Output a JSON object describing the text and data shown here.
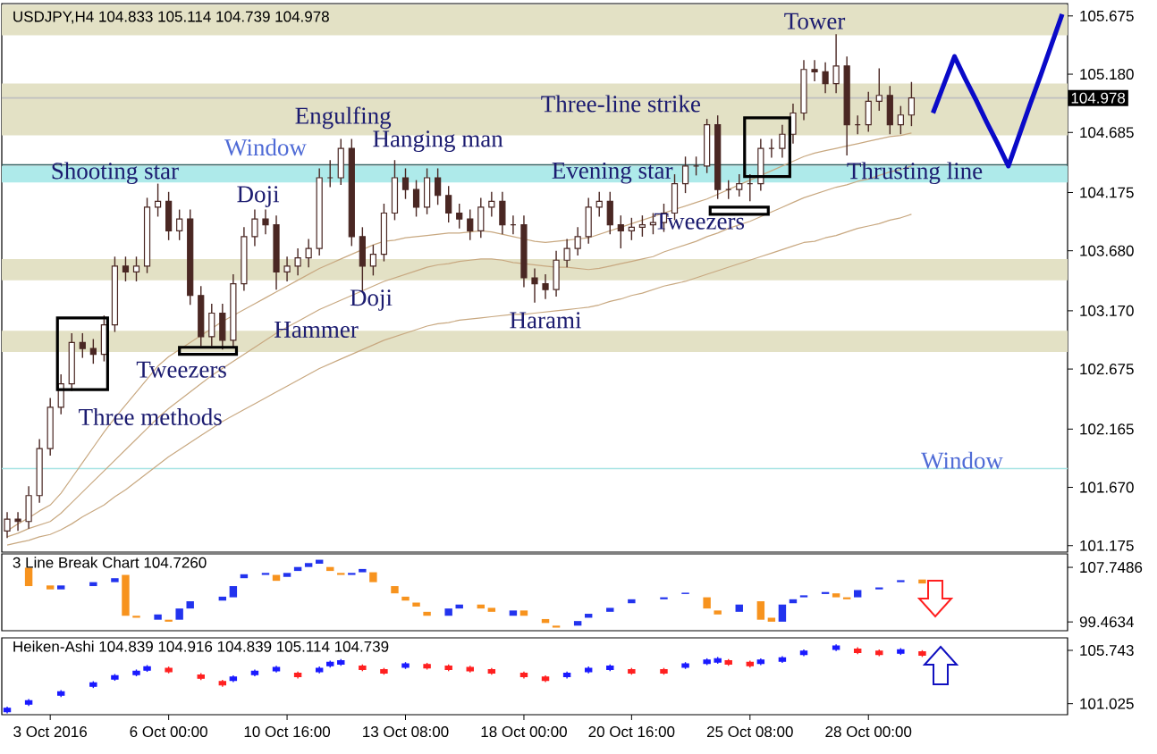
{
  "chart_data": [
    {
      "type": "candlestick",
      "title": "USDJPY,H4 104.833 105.114 104.739 104.978",
      "color": "#4a2723",
      "categories": [
        null,
        null,
        null,
        null,
        null,
        null,
        null,
        null,
        null,
        null,
        null,
        null,
        null,
        null,
        null,
        null,
        null,
        null,
        null,
        null,
        null,
        null,
        null,
        null,
        null,
        null,
        null,
        null,
        null,
        null,
        null,
        null,
        null,
        null,
        null,
        null,
        null,
        null,
        null,
        null,
        null,
        null,
        null,
        null,
        null,
        null,
        null,
        null,
        null,
        null,
        null,
        null,
        null,
        null,
        null,
        null,
        null,
        null,
        null,
        null,
        null,
        null,
        null,
        null,
        null,
        null,
        null,
        null,
        null,
        null,
        null,
        null,
        null,
        null,
        null,
        null,
        null,
        null,
        null,
        null,
        null,
        null,
        null,
        null,
        null,
        null,
        null,
        null,
        null,
        null,
        null,
        null,
        null,
        null,
        null,
        null,
        null,
        null,
        null
      ],
      "ohlc": [
        [
          101.3,
          101.46,
          101.24,
          101.4
        ],
        [
          101.4,
          101.46,
          101.3,
          101.38
        ],
        [
          101.38,
          101.68,
          101.32,
          101.6
        ],
        [
          101.6,
          102.08,
          101.54,
          102.0
        ],
        [
          102.0,
          102.43,
          101.94,
          102.35
        ],
        [
          102.35,
          102.63,
          102.29,
          102.55
        ],
        [
          102.55,
          102.98,
          102.49,
          102.9
        ],
        [
          102.9,
          102.98,
          102.77,
          102.85
        ],
        [
          102.85,
          102.93,
          102.72,
          102.8
        ],
        [
          102.8,
          103.13,
          102.74,
          103.05
        ],
        [
          103.05,
          103.63,
          102.99,
          103.55
        ],
        [
          103.55,
          103.63,
          103.42,
          103.5
        ],
        [
          103.5,
          103.63,
          103.42,
          103.55
        ],
        [
          103.55,
          104.13,
          103.49,
          104.05
        ],
        [
          104.05,
          104.25,
          103.97,
          104.1
        ],
        [
          104.1,
          104.18,
          103.77,
          103.85
        ],
        [
          103.85,
          104.03,
          103.77,
          103.95
        ],
        [
          103.95,
          104.03,
          103.22,
          103.3
        ],
        [
          103.3,
          103.38,
          102.87,
          102.95
        ],
        [
          102.95,
          103.23,
          102.87,
          103.15
        ],
        [
          103.15,
          103.23,
          102.84,
          102.92
        ],
        [
          102.92,
          103.48,
          102.86,
          103.4
        ],
        [
          103.4,
          103.88,
          103.34,
          103.8
        ],
        [
          103.8,
          104.03,
          103.72,
          103.95
        ],
        [
          103.95,
          104.03,
          103.82,
          103.9
        ],
        [
          103.9,
          103.98,
          103.35,
          103.5
        ],
        [
          103.5,
          103.63,
          103.42,
          103.55
        ],
        [
          103.55,
          103.7,
          103.47,
          103.62
        ],
        [
          103.62,
          103.78,
          103.54,
          103.7
        ],
        [
          103.7,
          104.38,
          103.64,
          104.3
        ],
        [
          104.3,
          104.45,
          104.22,
          104.3
        ],
        [
          104.3,
          104.63,
          104.24,
          104.55
        ],
        [
          104.55,
          104.63,
          103.72,
          103.8
        ],
        [
          103.8,
          103.88,
          103.33,
          103.55
        ],
        [
          103.55,
          103.73,
          103.47,
          103.65
        ],
        [
          103.65,
          104.08,
          103.59,
          104.0
        ],
        [
          104.0,
          104.45,
          103.94,
          104.3
        ],
        [
          104.3,
          104.38,
          104.12,
          104.2
        ],
        [
          104.2,
          104.28,
          103.97,
          104.05
        ],
        [
          104.05,
          104.38,
          103.99,
          104.3
        ],
        [
          104.3,
          104.38,
          104.07,
          104.15
        ],
        [
          104.15,
          104.23,
          103.92,
          104.0
        ],
        [
          104.0,
          104.08,
          103.87,
          103.95
        ],
        [
          103.95,
          104.03,
          103.77,
          103.85
        ],
        [
          103.85,
          104.13,
          103.79,
          104.05
        ],
        [
          104.05,
          104.18,
          103.97,
          104.1
        ],
        [
          104.1,
          104.18,
          103.82,
          103.9
        ],
        [
          103.9,
          103.98,
          103.82,
          103.9
        ],
        [
          103.9,
          103.98,
          103.37,
          103.45
        ],
        [
          103.45,
          103.53,
          103.24,
          103.4
        ],
        [
          103.4,
          103.48,
          103.27,
          103.35
        ],
        [
          103.35,
          103.68,
          103.29,
          103.6
        ],
        [
          103.6,
          103.78,
          103.54,
          103.7
        ],
        [
          103.7,
          103.88,
          103.64,
          103.8
        ],
        [
          103.8,
          104.13,
          103.74,
          104.05
        ],
        [
          104.05,
          104.18,
          103.97,
          104.1
        ],
        [
          104.1,
          104.18,
          103.82,
          103.9
        ],
        [
          103.9,
          103.98,
          103.7,
          103.85
        ],
        [
          103.85,
          103.96,
          103.77,
          103.88
        ],
        [
          103.88,
          103.98,
          103.8,
          103.9
        ],
        [
          103.9,
          104.0,
          103.82,
          103.92
        ],
        [
          103.92,
          104.08,
          103.84,
          104.0
        ],
        [
          104.0,
          104.33,
          103.94,
          104.25
        ],
        [
          104.25,
          104.48,
          104.17,
          104.4
        ],
        [
          104.4,
          104.48,
          104.32,
          104.4
        ],
        [
          104.4,
          104.8,
          104.34,
          104.75
        ],
        [
          104.75,
          104.83,
          104.12,
          104.2
        ],
        [
          104.2,
          104.28,
          104.12,
          104.2
        ],
        [
          104.2,
          104.33,
          104.14,
          104.25
        ],
        [
          104.25,
          104.33,
          104.1,
          104.25
        ],
        [
          104.25,
          104.63,
          104.19,
          104.55
        ],
        [
          104.55,
          104.63,
          104.47,
          104.55
        ],
        [
          104.55,
          104.75,
          104.47,
          104.67
        ],
        [
          104.67,
          104.93,
          104.59,
          104.85
        ],
        [
          104.85,
          105.3,
          104.79,
          105.22
        ],
        [
          105.22,
          105.3,
          105.12,
          105.2
        ],
        [
          105.2,
          105.28,
          105.02,
          105.1
        ],
        [
          105.1,
          105.52,
          105.02,
          105.25
        ],
        [
          105.25,
          105.33,
          104.49,
          104.75
        ],
        [
          104.75,
          104.83,
          104.67,
          104.75
        ],
        [
          104.75,
          105.03,
          104.69,
          104.95
        ],
        [
          104.95,
          105.23,
          104.87,
          105.0
        ],
        [
          105.0,
          105.08,
          104.67,
          104.75
        ],
        [
          104.75,
          104.91,
          104.67,
          104.833
        ],
        [
          104.833,
          105.114,
          104.739,
          104.978
        ],
        null,
        null,
        null,
        null,
        null,
        null,
        null,
        null,
        null,
        null,
        null,
        null,
        null,
        null
      ],
      "series": [
        {
          "type": "line",
          "color": "#c8a880",
          "values": [
            101.3,
            101.36,
            101.41,
            101.47,
            101.52,
            101.62,
            101.75,
            101.88,
            102.01,
            102.14,
            102.26,
            102.37,
            102.48,
            102.59,
            102.7,
            102.78,
            102.84,
            102.9,
            102.96,
            103.02,
            103.08,
            103.13,
            103.18,
            103.23,
            103.28,
            103.33,
            103.38,
            103.43,
            103.48,
            103.53,
            103.57,
            103.61,
            103.65,
            103.69,
            103.73,
            103.76,
            103.77,
            103.79,
            103.8,
            103.81,
            103.82,
            103.83,
            103.83,
            103.84,
            103.85,
            103.84,
            103.82,
            103.8,
            103.78,
            103.76,
            103.75,
            103.76,
            103.77,
            103.78,
            103.79,
            103.82,
            103.85,
            103.88,
            103.91,
            103.94,
            103.97,
            104.0,
            104.03,
            104.06,
            104.09,
            104.12,
            104.16,
            104.2,
            104.24,
            104.28,
            104.32,
            104.36,
            104.4,
            104.44,
            104.48,
            104.51,
            104.53,
            104.55,
            104.57,
            104.59,
            104.61,
            104.63,
            104.65,
            104.66,
            104.68,
            null,
            null,
            null,
            null,
            null,
            null,
            null,
            null,
            null,
            null,
            null,
            null,
            null,
            null
          ]
        },
        {
          "type": "line",
          "color": "#c8a880",
          "values": [
            101.25,
            101.28,
            101.32,
            101.35,
            101.38,
            101.45,
            101.54,
            101.63,
            101.72,
            101.81,
            101.9,
            101.99,
            102.08,
            102.17,
            102.26,
            102.34,
            102.41,
            102.48,
            102.55,
            102.62,
            102.68,
            102.74,
            102.8,
            102.86,
            102.92,
            102.98,
            103.03,
            103.08,
            103.13,
            103.18,
            103.22,
            103.26,
            103.3,
            103.34,
            103.38,
            103.42,
            103.45,
            103.48,
            103.51,
            103.54,
            103.56,
            103.57,
            103.59,
            103.6,
            103.61,
            103.61,
            103.6,
            103.58,
            103.57,
            103.56,
            103.55,
            103.54,
            103.54,
            103.53,
            103.52,
            103.53,
            103.55,
            103.57,
            103.59,
            103.61,
            103.63,
            103.67,
            103.7,
            103.73,
            103.76,
            103.8,
            103.83,
            103.87,
            103.9,
            103.93,
            103.97,
            104.01,
            104.05,
            104.09,
            104.13,
            104.16,
            104.19,
            104.22,
            104.24,
            104.27,
            104.29,
            104.32,
            104.35,
            104.37,
            104.4,
            null,
            null,
            null,
            null,
            null,
            null,
            null,
            null,
            null,
            null,
            null,
            null,
            null,
            null
          ]
        },
        {
          "type": "line",
          "color": "#c8a880",
          "values": [
            101.18,
            101.2,
            101.22,
            101.25,
            101.27,
            101.31,
            101.36,
            101.42,
            101.47,
            101.52,
            101.59,
            101.65,
            101.72,
            101.79,
            101.86,
            101.93,
            101.99,
            102.05,
            102.11,
            102.17,
            102.23,
            102.28,
            102.33,
            102.38,
            102.43,
            102.48,
            102.53,
            102.58,
            102.63,
            102.68,
            102.72,
            102.76,
            102.8,
            102.84,
            102.88,
            102.92,
            102.95,
            102.98,
            103.01,
            103.04,
            103.06,
            103.07,
            103.09,
            103.1,
            103.11,
            103.12,
            103.13,
            103.14,
            103.14,
            103.15,
            103.16,
            103.17,
            103.18,
            103.19,
            103.2,
            103.22,
            103.25,
            103.27,
            103.3,
            103.32,
            103.35,
            103.38,
            103.4,
            103.42,
            103.45,
            103.48,
            103.51,
            103.54,
            103.57,
            103.6,
            103.63,
            103.66,
            103.69,
            103.72,
            103.75,
            103.76,
            103.79,
            103.81,
            103.84,
            103.87,
            103.89,
            103.91,
            103.94,
            103.96,
            103.99,
            null,
            null,
            null,
            null,
            null,
            null,
            null,
            null,
            null,
            null,
            null,
            null,
            null,
            null
          ]
        },
        {
          "type": "line",
          "color": "#0a0ac8",
          "values": [
            null,
            null,
            null,
            null,
            null,
            null,
            null,
            null,
            null,
            null,
            null,
            null,
            null,
            null,
            null,
            null,
            null,
            null,
            null,
            null,
            null,
            null,
            null,
            null,
            null,
            null,
            null,
            null,
            null,
            null,
            null,
            null,
            null,
            null,
            null,
            null,
            null,
            null,
            null,
            null,
            null,
            null,
            null,
            null,
            null,
            null,
            null,
            null,
            null,
            null,
            null,
            null,
            null,
            null,
            null,
            null,
            null,
            null,
            null,
            null,
            null,
            null,
            null,
            null,
            null,
            null,
            null,
            null,
            null,
            null,
            null,
            null,
            null,
            null,
            null,
            null,
            null,
            null,
            null,
            null,
            null,
            null,
            null,
            null,
            null,
            null,
            104.85,
            105.09,
            105.33,
            105.14,
            104.96,
            104.77,
            104.59,
            104.4,
            104.66,
            104.92,
            105.17,
            105.43,
            105.69
          ]
        }
      ],
      "bands": [
        {
          "axis": "y",
          "from": 105.51,
          "to": 105.77,
          "color": "#e3e1c5"
        },
        {
          "axis": "y",
          "from": 104.66,
          "to": 105.1,
          "color": "#e3e1c5"
        },
        {
          "axis": "y",
          "from": 104.26,
          "to": 104.4,
          "color": "#aeeaea"
        },
        {
          "axis": "y",
          "from": 103.43,
          "to": 103.61,
          "color": "#e3e1c5"
        },
        {
          "axis": "y",
          "from": 102.82,
          "to": 103.0,
          "color": "#e3e1c5"
        }
      ],
      "ref_lines": [
        {
          "axis": "y",
          "value": 104.978,
          "label": "104.978",
          "color": "#c0c0c0"
        },
        {
          "axis": "y",
          "value": 104.41,
          "color": "#2f5f5f"
        },
        {
          "axis": "y",
          "value": 101.83,
          "color": "#a8e4e4"
        }
      ],
      "annotations": [
        "Tower",
        "Three-line strike",
        "Engulfing",
        "Hanging man",
        "Shooting star",
        "Window",
        "Evening star",
        "Thrusting line",
        "Doji",
        "Tweezers",
        "Hammer",
        "Doji",
        "Harami",
        "Tweezers",
        "Three methods",
        "Window"
      ],
      "ylim": [
        101.12,
        105.78
      ],
      "yticks": [
        101.175,
        {
          "value": 101.67,
          "label": "101.670"
        },
        102.165,
        102.675,
        {
          "value": 103.17,
          "label": "103.170"
        },
        {
          "value": 103.68,
          "label": "103.680"
        },
        104.175,
        104.685,
        {
          "value": 105.18,
          "label": "105.180"
        },
        105.675
      ],
      "tick_labels": "y"
    },
    {
      "type": "bar",
      "title": "3 Line Break Chart 104.7260",
      "categories": [
        null,
        null,
        null,
        null,
        null,
        null,
        null,
        null,
        null,
        null,
        null,
        null,
        null,
        null,
        null,
        null,
        null,
        null,
        null,
        null,
        null,
        null,
        null,
        null,
        null,
        null,
        null,
        null,
        null,
        null,
        null,
        null,
        null,
        null,
        null,
        null,
        null,
        null,
        null,
        null,
        null,
        null,
        null,
        null,
        null,
        null,
        null,
        null,
        null,
        null,
        null,
        null,
        null,
        null,
        null,
        null,
        null,
        null,
        null,
        null,
        null,
        null,
        null,
        null,
        null,
        null,
        null,
        null,
        null,
        null,
        null,
        null,
        null,
        null,
        null,
        null,
        null,
        null,
        null,
        null,
        null,
        null,
        null,
        null,
        null,
        null,
        null,
        null,
        null,
        null,
        null,
        null,
        null,
        null,
        null,
        null,
        null,
        null,
        null
      ],
      "base": [
        null,
        null,
        104.9,
        null,
        104.4,
        104.4,
        null,
        null,
        104.9,
        null,
        105.5,
        100.4,
        100.1,
        null,
        99.8,
        99.5,
        99.8,
        101.5,
        null,
        null,
        102.7,
        103.2,
        106.1,
        null,
        106.6,
        105.7,
        106.3,
        107.2,
        107.8,
        108.3,
        107.2,
        106.6,
        106.6,
        107.0,
        105.5,
        null,
        103.8,
        102.7,
        101.8,
        100.4,
        null,
        100.4,
        101.5,
        null,
        101.5,
        101.0,
        null,
        100.4,
        100.4,
        null,
        99.3,
        98.6,
        null,
        98.9,
        100.1,
        null,
        101.0,
        null,
        102.3,
        null,
        null,
        102.9,
        null,
        103.7,
        null,
        101.5,
        100.6,
        null,
        101.0,
        null,
        99.8,
        99.5,
        99.5,
        102.3,
        103.2,
        null,
        103.7,
        103.2,
        102.9,
        103.2,
        null,
        104.4,
        null,
        105.5,
        null,
        105.3,
        null,
        null,
        null,
        null,
        null,
        null,
        null,
        null,
        null,
        null,
        null,
        null,
        null
      ],
      "values": [
        null,
        null,
        2.8,
        null,
        0.6,
        0.6,
        null,
        null,
        0.6,
        null,
        0.6,
        6.2,
        0.3,
        null,
        0.8,
        0.3,
        1.7,
        1.1,
        null,
        null,
        0.6,
        1.7,
        0.6,
        null,
        0.3,
        0.9,
        0.6,
        0.6,
        0.6,
        0.6,
        0.6,
        0.3,
        0.3,
        0.5,
        1.5,
        null,
        1.1,
        0.6,
        0.6,
        0.6,
        null,
        1.1,
        0.6,
        null,
        0.6,
        0.6,
        null,
        0.8,
        0.8,
        null,
        0.6,
        0.3,
        null,
        0.7,
        0.6,
        null,
        0.6,
        null,
        0.6,
        null,
        null,
        0.3,
        null,
        0.2,
        null,
        1.7,
        0.6,
        null,
        1.1,
        null,
        2.8,
        0.6,
        2.6,
        0.6,
        0.3,
        null,
        0.3,
        0.6,
        0.3,
        1.1,
        null,
        0.3,
        null,
        0.3,
        null,
        0.6,
        null,
        null,
        null,
        null,
        null,
        null,
        null,
        null,
        null,
        null,
        null,
        null,
        null
      ],
      "colors": [
        null,
        null,
        "#f7931e",
        null,
        "#f7931e",
        "#2233ee",
        null,
        null,
        "#2233ee",
        null,
        "#2233ee",
        "#f7931e",
        "#f7931e",
        null,
        "#2233ee",
        "#f7931e",
        "#2233ee",
        "#2233ee",
        null,
        null,
        "#2233ee",
        "#2233ee",
        "#2233ee",
        null,
        "#2233ee",
        "#f7931e",
        "#2233ee",
        "#2233ee",
        "#2233ee",
        "#2233ee",
        "#f7931e",
        "#f7931e",
        "#2233ee",
        "#2233ee",
        "#f7931e",
        null,
        "#f7931e",
        "#f7931e",
        "#f7931e",
        "#f7931e",
        null,
        "#2233ee",
        "#2233ee",
        null,
        "#f7931e",
        "#f7931e",
        null,
        "#2233ee",
        "#f7931e",
        null,
        "#f7931e",
        "#f7931e",
        null,
        "#2233ee",
        "#2233ee",
        null,
        "#2233ee",
        null,
        "#2233ee",
        null,
        null,
        "#2233ee",
        null,
        "#2233ee",
        null,
        "#f7931e",
        "#f7931e",
        null,
        "#2233ee",
        null,
        "#f7931e",
        "#f7931e",
        "#2233ee",
        "#2233ee",
        "#2233ee",
        null,
        "#2233ee",
        "#f7931e",
        "#f7931e",
        "#2233ee",
        null,
        "#2233ee",
        null,
        "#2233ee",
        null,
        "#f7931e",
        null,
        null,
        null,
        null,
        null,
        null,
        null,
        null,
        null,
        null,
        null,
        null,
        null
      ],
      "ylim": [
        98.13,
        109.79
      ],
      "yticks": [
        99.4634,
        107.7486
      ],
      "tick_labels": "y"
    },
    {
      "type": "candlestick",
      "title": "Heiken-Ashi 104.839 104.916 104.839 105.114 104.739",
      "categories": [
        null,
        null,
        null,
        null,
        "3 Oct 2016",
        null,
        null,
        null,
        null,
        null,
        null,
        null,
        null,
        null,
        null,
        "6 Oct 00:00",
        null,
        null,
        null,
        null,
        null,
        null,
        null,
        null,
        null,
        null,
        "10 Oct 16:00",
        null,
        null,
        null,
        null,
        null,
        null,
        null,
        null,
        null,
        null,
        "13 Oct 08:00",
        null,
        null,
        null,
        null,
        null,
        null,
        null,
        null,
        null,
        null,
        "18 Oct 00:00",
        null,
        null,
        null,
        null,
        null,
        null,
        null,
        null,
        null,
        "20 Oct 16:00",
        null,
        null,
        null,
        null,
        null,
        null,
        null,
        null,
        null,
        null,
        "25 Oct 08:00",
        null,
        null,
        null,
        null,
        null,
        null,
        null,
        null,
        null,
        null,
        "28 Oct 00:00",
        null,
        null,
        null,
        null,
        null,
        null,
        null,
        null,
        null,
        null,
        null,
        null,
        null,
        null,
        null,
        null,
        null,
        null
      ],
      "ohlc": [
        [
          100.32,
          100.77,
          100.17,
          100.62
        ],
        null,
        [
          100.98,
          101.43,
          100.83,
          101.28
        ],
        null,
        null,
        [
          101.77,
          102.22,
          101.62,
          102.07
        ],
        null,
        null,
        [
          102.56,
          103.01,
          102.41,
          102.86
        ],
        null,
        [
          103.2,
          103.65,
          103.05,
          103.5
        ],
        null,
        [
          103.6,
          104.05,
          103.45,
          103.9
        ],
        [
          103.99,
          104.44,
          103.84,
          104.29
        ],
        null,
        [
          104.16,
          104.31,
          103.71,
          103.86
        ],
        null,
        null,
        [
          103.57,
          103.72,
          103.12,
          103.27
        ],
        null,
        [
          102.98,
          103.13,
          102.53,
          102.68
        ],
        [
          103.08,
          103.53,
          102.93,
          103.38
        ],
        null,
        [
          103.6,
          104.05,
          103.45,
          103.9
        ],
        null,
        [
          103.93,
          104.38,
          103.78,
          104.23
        ],
        null,
        [
          103.71,
          103.86,
          103.26,
          103.41
        ],
        null,
        [
          103.86,
          104.31,
          103.71,
          104.16
        ],
        [
          104.38,
          104.83,
          104.23,
          104.68
        ],
        [
          104.52,
          104.97,
          104.37,
          104.82
        ],
        null,
        [
          104.35,
          104.5,
          103.9,
          104.05
        ],
        null,
        [
          104.04,
          104.19,
          103.59,
          103.74
        ],
        null,
        [
          104.25,
          104.7,
          104.1,
          104.55
        ],
        null,
        [
          104.49,
          104.64,
          104.04,
          104.19
        ],
        null,
        [
          104.35,
          104.5,
          103.9,
          104.05
        ],
        null,
        [
          104.23,
          104.38,
          103.78,
          103.93
        ],
        null,
        [
          104.04,
          104.19,
          103.59,
          103.74
        ],
        null,
        null,
        [
          103.71,
          103.86,
          103.26,
          103.41
        ],
        null,
        [
          103.38,
          103.53,
          102.93,
          103.08
        ],
        null,
        [
          103.41,
          103.86,
          103.26,
          103.71
        ],
        null,
        [
          103.86,
          104.31,
          103.71,
          104.16
        ],
        null,
        [
          104.05,
          104.5,
          103.9,
          104.35
        ],
        null,
        [
          104.04,
          104.19,
          103.59,
          103.74
        ],
        null,
        null,
        [
          104.04,
          104.19,
          103.59,
          103.74
        ],
        null,
        [
          104.25,
          104.7,
          104.1,
          104.55
        ],
        null,
        [
          104.59,
          105.04,
          104.44,
          104.89
        ],
        [
          104.71,
          105.16,
          104.56,
          105.01
        ],
        [
          104.82,
          104.97,
          104.37,
          104.52
        ],
        null,
        [
          104.68,
          104.83,
          104.23,
          104.38
        ],
        [
          104.59,
          105.04,
          104.44,
          104.89
        ],
        null,
        [
          104.78,
          105.23,
          104.63,
          105.08
        ],
        null,
        [
          105.37,
          105.82,
          105.22,
          105.67
        ],
        null,
        null,
        [
          105.83,
          106.28,
          105.68,
          106.13
        ],
        null,
        [
          105.86,
          106.01,
          105.41,
          105.56
        ],
        null,
        [
          105.67,
          105.82,
          105.22,
          105.37
        ],
        null,
        [
          105.49,
          105.94,
          105.34,
          105.79
        ],
        null,
        [
          105.61,
          105.76,
          105.16,
          105.31
        ],
        null,
        null,
        null,
        null,
        null,
        null,
        null,
        null,
        null,
        null,
        null,
        null,
        null
      ],
      "colors": [
        "#1a1aff",
        null,
        "#1a1aff",
        null,
        null,
        "#1a1aff",
        null,
        null,
        "#1a1aff",
        null,
        "#1a1aff",
        null,
        "#1a1aff",
        "#1a1aff",
        null,
        "#ff2020",
        null,
        null,
        "#ff2020",
        null,
        "#ff2020",
        "#1a1aff",
        null,
        "#1a1aff",
        null,
        "#1a1aff",
        null,
        "#ff2020",
        null,
        "#1a1aff",
        "#1a1aff",
        "#1a1aff",
        null,
        "#ff2020",
        null,
        "#ff2020",
        null,
        "#1a1aff",
        null,
        "#ff2020",
        null,
        "#ff2020",
        null,
        "#ff2020",
        null,
        "#ff2020",
        null,
        null,
        "#ff2020",
        null,
        "#ff2020",
        null,
        "#1a1aff",
        null,
        "#1a1aff",
        null,
        "#1a1aff",
        null,
        "#ff2020",
        null,
        null,
        "#ff2020",
        null,
        "#1a1aff",
        null,
        "#1a1aff",
        "#1a1aff",
        "#ff2020",
        null,
        "#ff2020",
        "#1a1aff",
        null,
        "#1a1aff",
        null,
        "#1a1aff",
        null,
        null,
        "#1a1aff",
        null,
        "#ff2020",
        null,
        "#ff2020",
        null,
        "#1a1aff",
        null,
        "#ff2020",
        null,
        null,
        null,
        null,
        null,
        null,
        null,
        null,
        null,
        null,
        null,
        null,
        null
      ],
      "ylim": [
        100.05,
        106.85
      ],
      "yticks": [
        101.025,
        105.743
      ]
    }
  ]
}
